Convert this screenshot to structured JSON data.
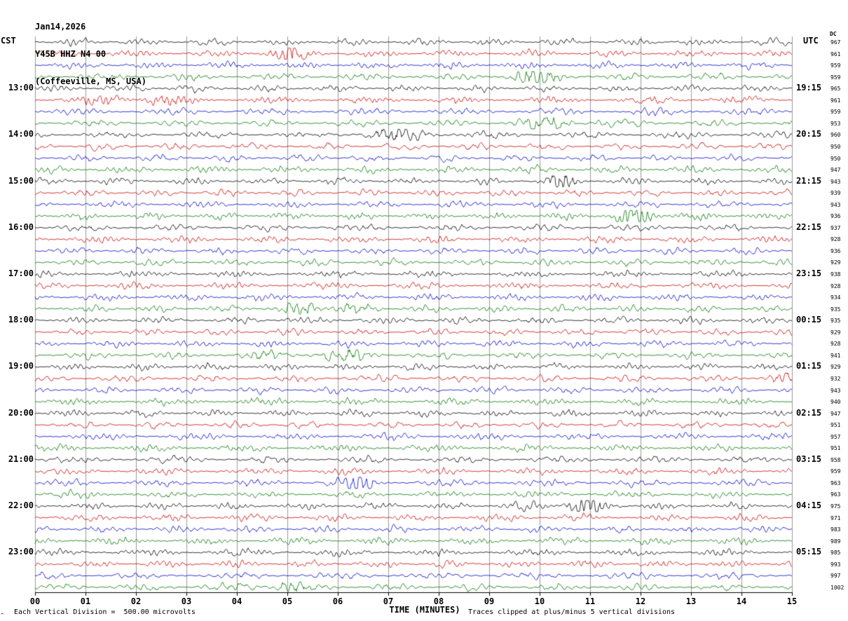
{
  "header": {
    "date_line": "Jan14,2026",
    "station_line": "Y45B HHZ N4 00",
    "location_line": "(Coffeeville, MS, USA)",
    "left_tz": "CST",
    "right_tz": "UTC",
    "dc_header": "DC"
  },
  "footer": {
    "xaxis_title": "TIME (MINUTES)",
    "scale_note": "Each Vertical Division =  500.00 microvolts",
    "clip_note": "Traces clipped at plus/minus 5 vertical divisions",
    "corner_mark": "^"
  },
  "chart_data": {
    "type": "line",
    "subtype": "helicorder-seismogram",
    "title": "Y45B HHZ N4 00 (Coffeeville, MS, USA) Jan14,2026",
    "xlabel": "TIME (MINUTES)",
    "x_range_minutes": [
      0,
      15
    ],
    "x_ticks": [
      "00",
      "01",
      "02",
      "03",
      "04",
      "05",
      "06",
      "07",
      "08",
      "09",
      "10",
      "11",
      "12",
      "13",
      "14",
      "15"
    ],
    "minutes_per_line": 15,
    "num_rows": 48,
    "trace_color_cycle": [
      "#000000",
      "#cc0000",
      "#0000cc",
      "#007700"
    ],
    "grid_color": "#555555",
    "left_time_labels": [
      {
        "row": 4,
        "label": "13:00"
      },
      {
        "row": 8,
        "label": "14:00"
      },
      {
        "row": 12,
        "label": "15:00"
      },
      {
        "row": 16,
        "label": "16:00"
      },
      {
        "row": 20,
        "label": "17:00"
      },
      {
        "row": 24,
        "label": "18:00"
      },
      {
        "row": 28,
        "label": "19:00"
      },
      {
        "row": 32,
        "label": "20:00"
      },
      {
        "row": 36,
        "label": "21:00"
      },
      {
        "row": 40,
        "label": "22:00"
      },
      {
        "row": 44,
        "label": "23:00"
      }
    ],
    "right_time_labels": [
      {
        "row": 4,
        "label": "19:15"
      },
      {
        "row": 8,
        "label": "20:15"
      },
      {
        "row": 12,
        "label": "21:15"
      },
      {
        "row": 16,
        "label": "22:15"
      },
      {
        "row": 20,
        "label": "23:15"
      },
      {
        "row": 24,
        "label": "00:15"
      },
      {
        "row": 28,
        "label": "01:15"
      },
      {
        "row": 32,
        "label": "02:15"
      },
      {
        "row": 36,
        "label": "03:15"
      },
      {
        "row": 40,
        "label": "04:15"
      },
      {
        "row": 44,
        "label": "05:15"
      }
    ],
    "dc_values": [
      "967",
      "961",
      "959",
      "959",
      "965",
      "961",
      "959",
      "953",
      "960",
      "950",
      "950",
      "947",
      "943",
      "939",
      "943",
      "936",
      "937",
      "928",
      "936",
      "929",
      "938",
      "928",
      "934",
      "935",
      "935",
      "929",
      "928",
      "941",
      "929",
      "932",
      "943",
      "940",
      "947",
      "951",
      "957",
      "951",
      "958",
      "959",
      "963",
      "963",
      "975",
      "971",
      "983",
      "989",
      "985",
      "993",
      "997",
      "1002"
    ]
  }
}
